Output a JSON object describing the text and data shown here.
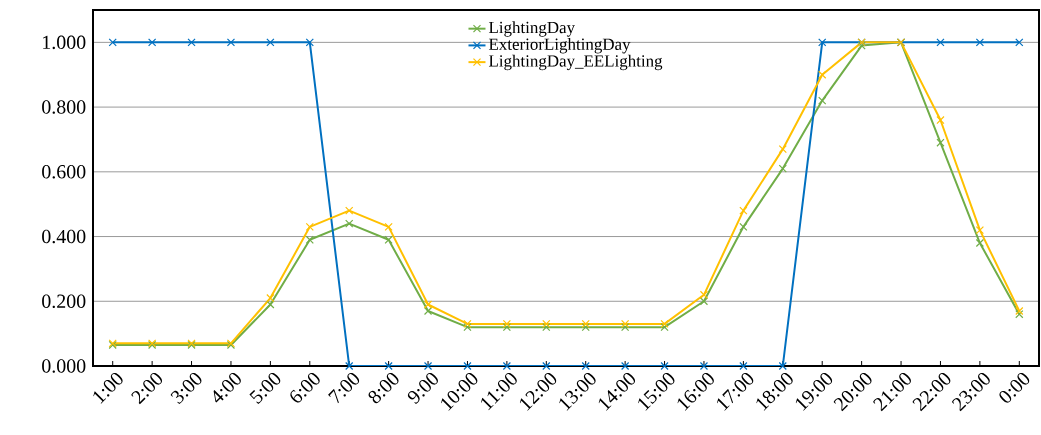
{
  "chart_data": {
    "type": "line",
    "categories": [
      "1:00",
      "2:00",
      "3:00",
      "4:00",
      "5:00",
      "6:00",
      "7:00",
      "8:00",
      "9:00",
      "10:00",
      "11:00",
      "12:00",
      "13:00",
      "14:00",
      "15:00",
      "16:00",
      "17:00",
      "18:00",
      "19:00",
      "20:00",
      "21:00",
      "22:00",
      "23:00",
      "0:00"
    ],
    "series": [
      {
        "name": "LightingDay",
        "color": "#70ad47",
        "values": [
          0.065,
          0.065,
          0.065,
          0.065,
          0.19,
          0.39,
          0.44,
          0.39,
          0.17,
          0.12,
          0.12,
          0.12,
          0.12,
          0.12,
          0.12,
          0.2,
          0.43,
          0.61,
          0.82,
          0.99,
          1.0,
          0.69,
          0.38,
          0.16
        ]
      },
      {
        "name": "ExteriorLightingDay",
        "color": "#0070c0",
        "values": [
          1,
          1,
          1,
          1,
          1,
          1,
          0,
          0,
          0,
          0,
          0,
          0,
          0,
          0,
          0,
          0,
          0,
          0,
          1,
          1,
          1,
          1,
          1,
          1
        ]
      },
      {
        "name": "LightingDay_EELighting",
        "color": "#ffc000",
        "values": [
          0.07,
          0.07,
          0.07,
          0.07,
          0.21,
          0.43,
          0.48,
          0.43,
          0.19,
          0.13,
          0.13,
          0.13,
          0.13,
          0.13,
          0.13,
          0.22,
          0.48,
          0.67,
          0.9,
          1.0,
          1.0,
          0.76,
          0.42,
          0.17
        ]
      }
    ],
    "ylim": [
      0,
      1.1
    ],
    "yticks": [
      {
        "value": 0,
        "label": "0.000"
      },
      {
        "value": 0.2,
        "label": "0.200"
      },
      {
        "value": 0.4,
        "label": "0.400"
      },
      {
        "value": 0.6,
        "label": "0.600"
      },
      {
        "value": 0.8,
        "label": "0.800"
      },
      {
        "value": 1.0,
        "label": "1.000"
      }
    ],
    "grid": "y",
    "legend": "top",
    "marker": "cross",
    "line_style": "solid"
  }
}
